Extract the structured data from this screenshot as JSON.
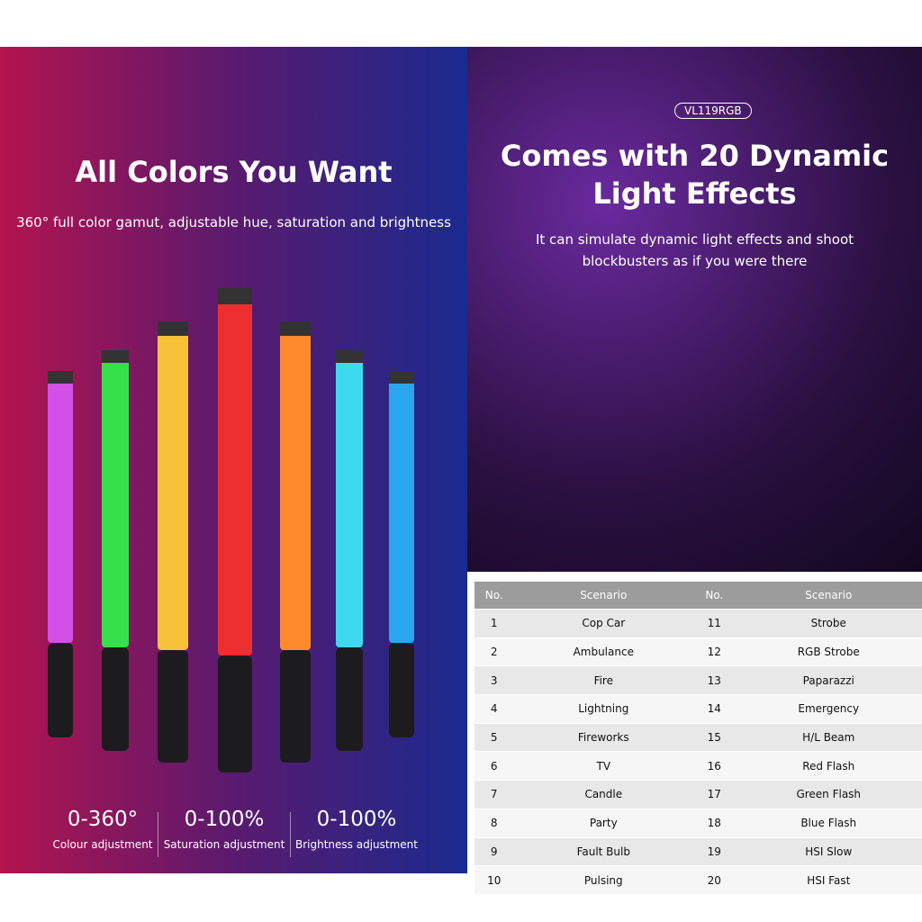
{
  "left": {
    "title": "All Colors You Want",
    "subtitle": "360° full color gamut, adjustable hue, saturation and brightness",
    "stats": [
      {
        "value": "0-360°",
        "label": "Colour adjustment"
      },
      {
        "value": "0-100%",
        "label": "Saturation adjustment"
      },
      {
        "value": "0-100%",
        "label": "Brightness adjustment"
      }
    ]
  },
  "right": {
    "badge": "VL119RGB",
    "title_lines": [
      "Comes with 20 Dynamic",
      "Light Effects"
    ],
    "subtitle_lines": [
      "It can simulate dynamic light effects and shoot",
      "blockbusters as if you were there"
    ]
  },
  "table": {
    "header": [
      "No.",
      "Scenario",
      "No.",
      "Scenario"
    ],
    "rows": [
      [
        1,
        "Cop Car",
        11,
        "Strobe"
      ],
      [
        2,
        "Ambulance",
        12,
        "RGB Strobe"
      ],
      [
        3,
        "Fire",
        13,
        "Paparazzi"
      ],
      [
        4,
        "Lightning",
        14,
        "Emergency"
      ],
      [
        5,
        "Fireworks",
        15,
        "H/L Beam"
      ],
      [
        6,
        "TV",
        16,
        "Red Flash"
      ],
      [
        7,
        "Candle",
        17,
        "Green Flash"
      ],
      [
        8,
        "Party",
        18,
        "Blue Flash"
      ],
      [
        9,
        "Fault Bulb",
        19,
        "HSI Slow"
      ],
      [
        10,
        "Pulsing",
        20,
        "HSI Fast"
      ]
    ]
  }
}
